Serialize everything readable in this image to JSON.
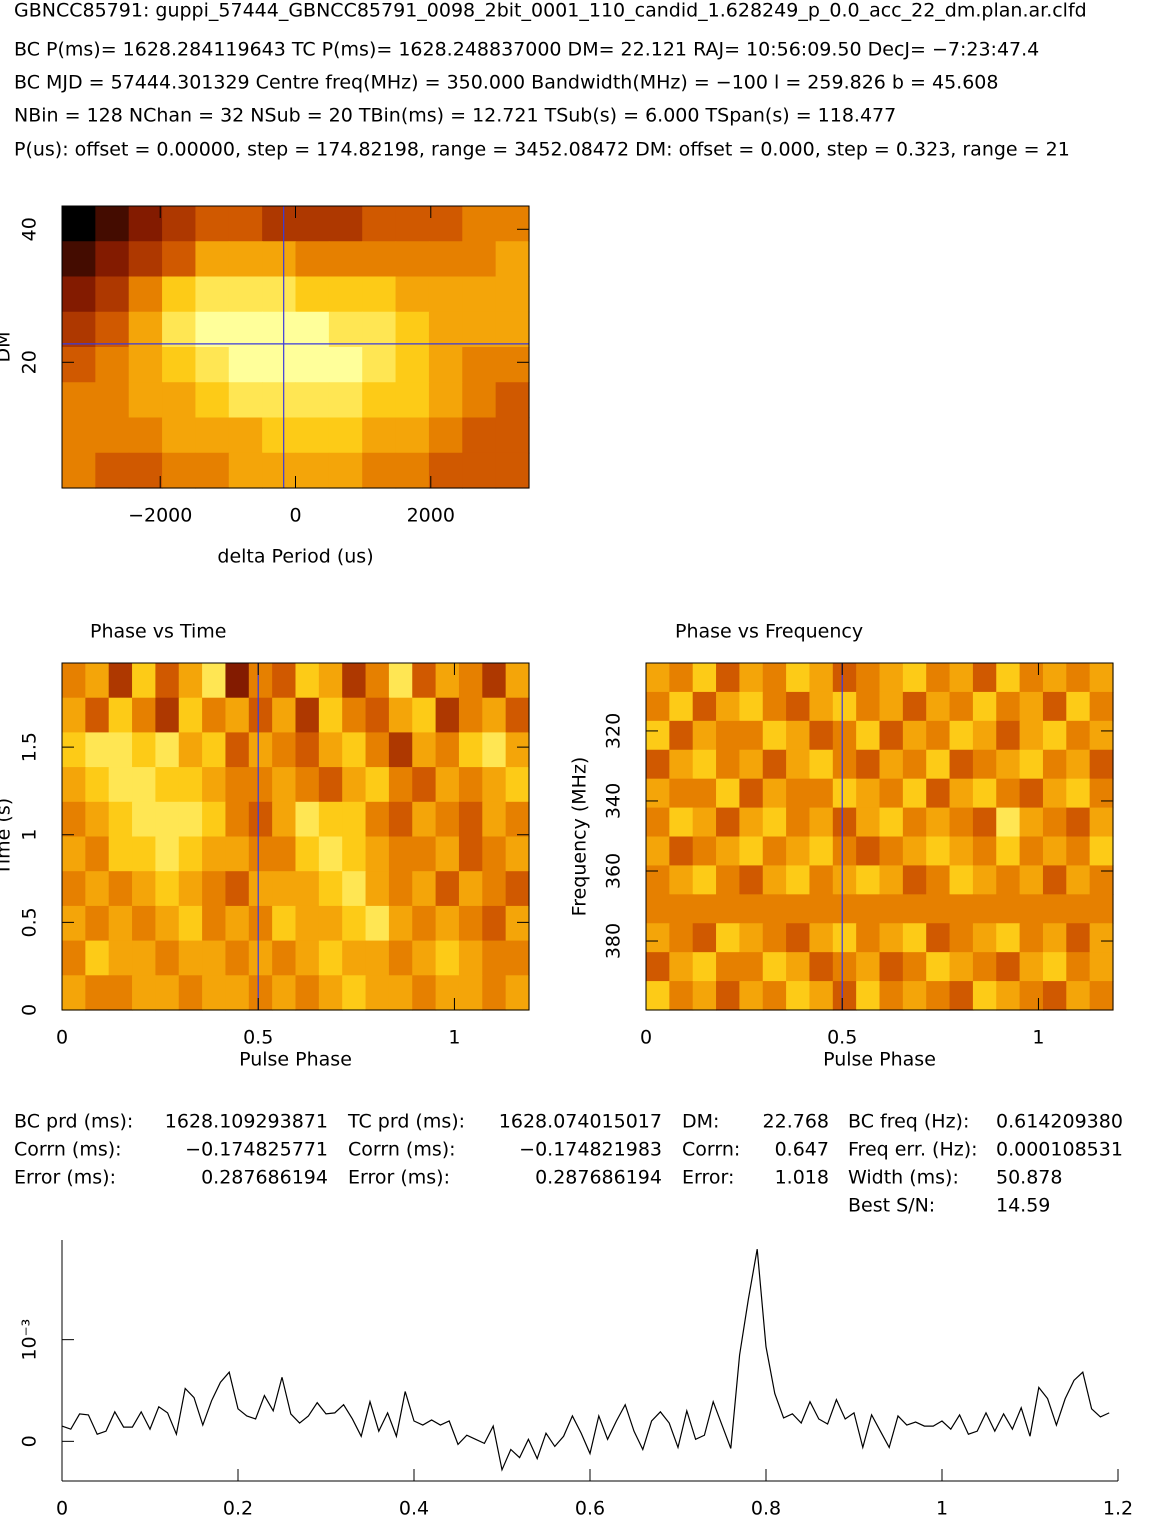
{
  "header": {
    "title": "GBNCC85791: guppi_57444_GBNCC85791_0098_2bit_0001_110_candid_1.628249_p_0.0_acc_22_dm.plan.ar.clfd",
    "lines": [
      "BC P(ms)= 1628.284119643 TC P(ms)= 1628.248837000 DM= 22.121 RAJ= 10:56:09.50 DecJ= −7:23:47.4",
      "BC MJD = 57444.301329 Centre freq(MHz) = 350.000 Bandwidth(MHz) = −100 l = 259.826 b = 45.608",
      "NBin = 128 NChan = 32 NSub = 20 TBin(ms) = 12.721 TSub(s) = 6.000 TSpan(s) = 118.477",
      "P(us): offset = 0.00000, step = 174.82198, range = 3452.08472 DM: offset = 0.000, step = 0.323, range = 21"
    ]
  },
  "stats": [
    [
      [
        "BC prd (ms):",
        "1628.109293871"
      ],
      [
        "Corrn (ms):",
        "−0.174825771"
      ],
      [
        "Error (ms):",
        "0.287686194"
      ]
    ],
    [
      [
        "TC prd (ms):",
        "1628.074015017"
      ],
      [
        "Corrn (ms):",
        "−0.174821983"
      ],
      [
        "Error (ms):",
        "0.287686194"
      ]
    ],
    [
      [
        "DM:",
        "22.768"
      ],
      [
        "Corrn:",
        "0.647"
      ],
      [
        "Error:",
        "1.018"
      ]
    ],
    [
      [
        "BC freq (Hz):",
        "0.614209380"
      ],
      [
        "Freq err. (Hz):",
        "0.000108531"
      ],
      [
        "Width (ms):",
        "50.878"
      ],
      [
        "Best S/N:",
        "14.59"
      ]
    ]
  ],
  "chart_data": [
    {
      "type": "heatmap",
      "xlabel": "delta Period (us)",
      "ylabel": "DM",
      "xlim": [
        -3452,
        3452
      ],
      "ylim": [
        1.1,
        43.5
      ],
      "xticks": [
        {
          "value": -2000,
          "label": "−2000"
        },
        0,
        2000
      ],
      "yticks": [
        20,
        40
      ],
      "crosshair": {
        "x": -174.825771,
        "y": 22.768
      },
      "crosshair_color": "#3a3adc",
      "zlim": [
        0,
        9
      ],
      "colormap": [
        "#000000",
        "#7a1500",
        "#c84a00",
        "#ee8f00",
        "#ffd21a",
        "#ffff9a"
      ],
      "z": [
        [
          0,
          1,
          2,
          3,
          4,
          4,
          3,
          3,
          3,
          4,
          4,
          4,
          5,
          5
        ],
        [
          1,
          2,
          3,
          4,
          6,
          6,
          6,
          5,
          5,
          5,
          5,
          5,
          5,
          6
        ],
        [
          2,
          3,
          5,
          7,
          8,
          8,
          8,
          7,
          7,
          7,
          6,
          6,
          6,
          6
        ],
        [
          3,
          4,
          6,
          8,
          9,
          9,
          9,
          9,
          8,
          8,
          7,
          6,
          6,
          6
        ],
        [
          4,
          5,
          6,
          7,
          8,
          9,
          9,
          9,
          9,
          8,
          7,
          6,
          5,
          5
        ],
        [
          5,
          5,
          6,
          6,
          7,
          8,
          8,
          8,
          8,
          7,
          7,
          6,
          5,
          4
        ],
        [
          5,
          5,
          5,
          6,
          6,
          6,
          7,
          7,
          7,
          6,
          6,
          5,
          4,
          4
        ],
        [
          5,
          4,
          4,
          5,
          5,
          6,
          6,
          6,
          6,
          5,
          5,
          4,
          4,
          4
        ]
      ]
    },
    {
      "type": "heatmap",
      "title": "Phase vs Time",
      "xlabel": "Pulse Phase",
      "ylabel": "Time (s)",
      "xlim": [
        0,
        1.19
      ],
      "ylim": [
        0,
        1.98
      ],
      "xticks": [
        0,
        0.5,
        1
      ],
      "yticks": [
        0,
        0.5,
        1,
        1.5
      ],
      "crosshair": {
        "x": 0.5
      },
      "crosshair_color": "#3a3adc",
      "zlim": [
        0,
        9
      ],
      "colormap": [
        "#000000",
        "#7a1500",
        "#c84a00",
        "#ee8f00",
        "#ffd21a",
        "#ffff9a"
      ],
      "z": [
        [
          5,
          6,
          3,
          7,
          4,
          6,
          8,
          2,
          5,
          4,
          7,
          6,
          3,
          5,
          8,
          4,
          6,
          5,
          3,
          6
        ],
        [
          6,
          4,
          7,
          5,
          3,
          7,
          5,
          6,
          4,
          6,
          3,
          7,
          5,
          4,
          6,
          7,
          3,
          5,
          6,
          4
        ],
        [
          7,
          8,
          8,
          7,
          8,
          6,
          7,
          4,
          6,
          5,
          4,
          6,
          7,
          5,
          3,
          6,
          5,
          7,
          8,
          6
        ],
        [
          6,
          7,
          8,
          8,
          7,
          7,
          6,
          5,
          5,
          6,
          5,
          4,
          6,
          7,
          5,
          4,
          6,
          5,
          6,
          7
        ],
        [
          5,
          6,
          7,
          8,
          8,
          8,
          7,
          5,
          4,
          6,
          8,
          7,
          7,
          5,
          4,
          6,
          5,
          4,
          6,
          5
        ],
        [
          6,
          5,
          7,
          7,
          8,
          7,
          6,
          6,
          5,
          5,
          7,
          8,
          7,
          6,
          5,
          5,
          6,
          4,
          5,
          6
        ],
        [
          5,
          6,
          5,
          6,
          7,
          6,
          5,
          4,
          6,
          6,
          6,
          7,
          8,
          6,
          5,
          6,
          4,
          6,
          5,
          4
        ],
        [
          6,
          5,
          6,
          5,
          6,
          7,
          5,
          6,
          5,
          7,
          6,
          6,
          7,
          8,
          6,
          5,
          6,
          5,
          4,
          6
        ],
        [
          5,
          7,
          6,
          6,
          5,
          6,
          6,
          5,
          6,
          5,
          6,
          7,
          6,
          6,
          5,
          6,
          7,
          6,
          5,
          5
        ],
        [
          6,
          5,
          5,
          6,
          6,
          5,
          6,
          6,
          5,
          6,
          5,
          6,
          7,
          6,
          6,
          5,
          6,
          6,
          5,
          6
        ]
      ]
    },
    {
      "type": "heatmap",
      "title": "Phase vs Frequency",
      "xlabel": "Pulse Phase",
      "ylabel": "Frequency (MHz)",
      "xlim": [
        0,
        1.19
      ],
      "ylim": [
        399.7,
        300.6
      ],
      "xticks": [
        0,
        0.5,
        1
      ],
      "yticks": [
        320,
        340,
        360,
        380
      ],
      "crosshair": {
        "x": 0.5
      },
      "crosshair_color": "#3a3adc",
      "zlim": [
        0,
        9
      ],
      "colormap": [
        "#000000",
        "#7a1500",
        "#c84a00",
        "#ee8f00",
        "#ffd21a",
        "#ffff9a"
      ],
      "z": [
        [
          6,
          5,
          7,
          4,
          6,
          5,
          7,
          6,
          4,
          5,
          6,
          7,
          5,
          6,
          4,
          7,
          5,
          6,
          5,
          6
        ],
        [
          5,
          7,
          4,
          6,
          7,
          5,
          4,
          6,
          7,
          5,
          6,
          4,
          6,
          5,
          7,
          5,
          6,
          4,
          7,
          5
        ],
        [
          7,
          4,
          6,
          5,
          5,
          7,
          6,
          4,
          5,
          7,
          4,
          6,
          5,
          7,
          6,
          4,
          6,
          7,
          5,
          6
        ],
        [
          4,
          6,
          7,
          5,
          6,
          4,
          6,
          7,
          5,
          4,
          6,
          5,
          7,
          4,
          5,
          6,
          7,
          5,
          6,
          4
        ],
        [
          6,
          5,
          5,
          7,
          4,
          6,
          5,
          5,
          7,
          6,
          5,
          7,
          4,
          6,
          7,
          5,
          4,
          6,
          7,
          5
        ],
        [
          5,
          7,
          6,
          4,
          6,
          7,
          5,
          6,
          4,
          6,
          7,
          5,
          6,
          5,
          4,
          8,
          6,
          5,
          4,
          6
        ],
        [
          6,
          4,
          5,
          6,
          7,
          5,
          6,
          7,
          5,
          4,
          5,
          6,
          7,
          6,
          5,
          7,
          5,
          6,
          5,
          7
        ],
        [
          5,
          6,
          7,
          5,
          4,
          6,
          7,
          5,
          6,
          7,
          6,
          4,
          5,
          7,
          6,
          5,
          6,
          4,
          6,
          5
        ],
        [
          5,
          5,
          5,
          5,
          5,
          5,
          5,
          5,
          5,
          5,
          5,
          5,
          5,
          5,
          5,
          5,
          5,
          5,
          5,
          5
        ],
        [
          6,
          5,
          4,
          7,
          6,
          5,
          4,
          6,
          7,
          5,
          6,
          7,
          4,
          5,
          6,
          7,
          5,
          6,
          4,
          6
        ],
        [
          4,
          6,
          7,
          5,
          5,
          7,
          6,
          4,
          5,
          6,
          4,
          5,
          7,
          6,
          5,
          4,
          6,
          7,
          5,
          6
        ],
        [
          7,
          5,
          6,
          4,
          6,
          5,
          7,
          6,
          4,
          7,
          5,
          6,
          5,
          4,
          7,
          6,
          5,
          4,
          6,
          5
        ]
      ]
    },
    {
      "type": "line",
      "color": "#000000",
      "xlim": [
        0,
        1.2
      ],
      "ylim": [
        -0.00039,
        0.00198
      ],
      "xticks": [
        0,
        0.2,
        0.4,
        0.6,
        0.8,
        1,
        1.2
      ],
      "yticks": [
        0,
        {
          "value": 0.001,
          "label": "10⁻³"
        }
      ],
      "x": [
        0,
        0.01,
        0.02,
        0.03,
        0.04,
        0.05,
        0.06,
        0.07,
        0.08,
        0.09,
        0.1,
        0.11,
        0.12,
        0.13,
        0.14,
        0.15,
        0.16,
        0.17,
        0.18,
        0.19,
        0.2,
        0.21,
        0.22,
        0.23,
        0.24,
        0.25,
        0.26,
        0.27,
        0.28,
        0.29,
        0.3,
        0.31,
        0.32,
        0.33,
        0.34,
        0.35,
        0.36,
        0.37,
        0.38,
        0.39,
        0.4,
        0.41,
        0.42,
        0.43,
        0.44,
        0.45,
        0.46,
        0.47,
        0.48,
        0.49,
        0.5,
        0.51,
        0.52,
        0.53,
        0.54,
        0.55,
        0.56,
        0.57,
        0.58,
        0.59,
        0.6,
        0.61,
        0.62,
        0.63,
        0.64,
        0.65,
        0.66,
        0.67,
        0.68,
        0.69,
        0.7,
        0.71,
        0.72,
        0.73,
        0.74,
        0.75,
        0.76,
        0.77,
        0.78,
        0.79,
        0.8,
        0.81,
        0.82,
        0.83,
        0.84,
        0.85,
        0.86,
        0.87,
        0.88,
        0.89,
        0.9,
        0.91,
        0.92,
        0.93,
        0.94,
        0.95,
        0.96,
        0.97,
        0.98,
        0.99,
        1,
        1.01,
        1.02,
        1.03,
        1.04,
        1.05,
        1.06,
        1.07,
        1.08,
        1.09,
        1.1,
        1.11,
        1.12,
        1.13,
        1.14,
        1.15,
        1.16,
        1.17,
        1.18,
        1.19
      ],
      "values": [
        0.00015,
        0.00012,
        0.00027,
        0.00026,
        7e-05,
        0.0001,
        0.00029,
        0.00014,
        0.00014,
        0.00029,
        0.00012,
        0.00034,
        0.00028,
        7e-05,
        0.00052,
        0.00043,
        0.00016,
        0.0004,
        0.00058,
        0.00068,
        0.00032,
        0.00025,
        0.00022,
        0.00045,
        0.0003,
        0.00063,
        0.00027,
        0.00018,
        0.00025,
        0.00038,
        0.00027,
        0.00028,
        0.00036,
        0.00022,
        5e-05,
        0.00039,
        0.0001,
        0.00028,
        5e-05,
        0.00049,
        0.0002,
        0.00016,
        0.00021,
        0.00016,
        0.0002,
        -3e-05,
        6e-05,
        2e-05,
        -2e-05,
        0.00015,
        -0.00028,
        -8e-05,
        -0.00016,
        2e-05,
        -0.00017,
        8e-05,
        -5e-05,
        5e-05,
        0.00025,
        8e-05,
        -0.00012,
        0.00025,
        2e-05,
        0.0002,
        0.00036,
        0.0001,
        -8e-05,
        0.0002,
        0.00029,
        0.00018,
        -6e-05,
        0.0003,
        2e-05,
        6e-05,
        0.00039,
        0.00016,
        -7e-05,
        0.00085,
        0.0014,
        0.00189,
        0.00093,
        0.00047,
        0.00023,
        0.00027,
        0.00018,
        0.00039,
        0.00022,
        0.00017,
        0.00041,
        0.00022,
        0.00028,
        -6e-05,
        0.00026,
        0.0001,
        -6e-05,
        0.00025,
        0.00016,
        0.00019,
        0.00015,
        0.00015,
        0.0002,
        0.00012,
        0.00026,
        7e-05,
        0.0001,
        0.00028,
        0.0001,
        0.00027,
        0.00012,
        0.00033,
        5e-05,
        0.00053,
        0.00042,
        0.00016,
        0.00042,
        0.0006,
        0.00068,
        0.00032,
        0.00024,
        0.00028
      ]
    }
  ]
}
